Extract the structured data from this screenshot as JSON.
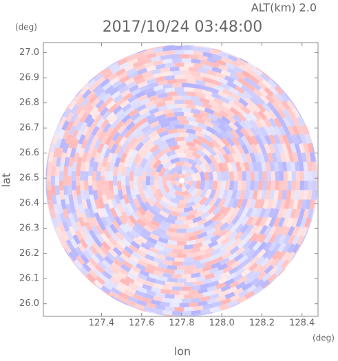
{
  "chart_data": {
    "type": "radar-ppi",
    "title": "2017/10/24 03:48:00",
    "subtitle": "ALT(km) 2.0",
    "x_label": "lon",
    "y_label": "lat",
    "x_unit": "(deg)",
    "y_unit": "(deg)",
    "xlim": [
      127.11,
      128.48
    ],
    "ylim": [
      25.95,
      27.04
    ],
    "xticks": [
      127.4,
      127.6,
      127.8,
      {
        "value": 128,
        "label": "128.0"
      },
      128.2,
      128.4
    ],
    "yticks": [
      {
        "value": 26,
        "label": "26.0"
      },
      26.1,
      26.2,
      26.3,
      26.4,
      26.5,
      26.6,
      26.7,
      26.8,
      26.9,
      {
        "value": 27,
        "label": "27.0"
      }
    ],
    "center": [
      127.8,
      26.49
    ],
    "positive_color": "#ff8080",
    "negative_color": "#8080ff"
  }
}
